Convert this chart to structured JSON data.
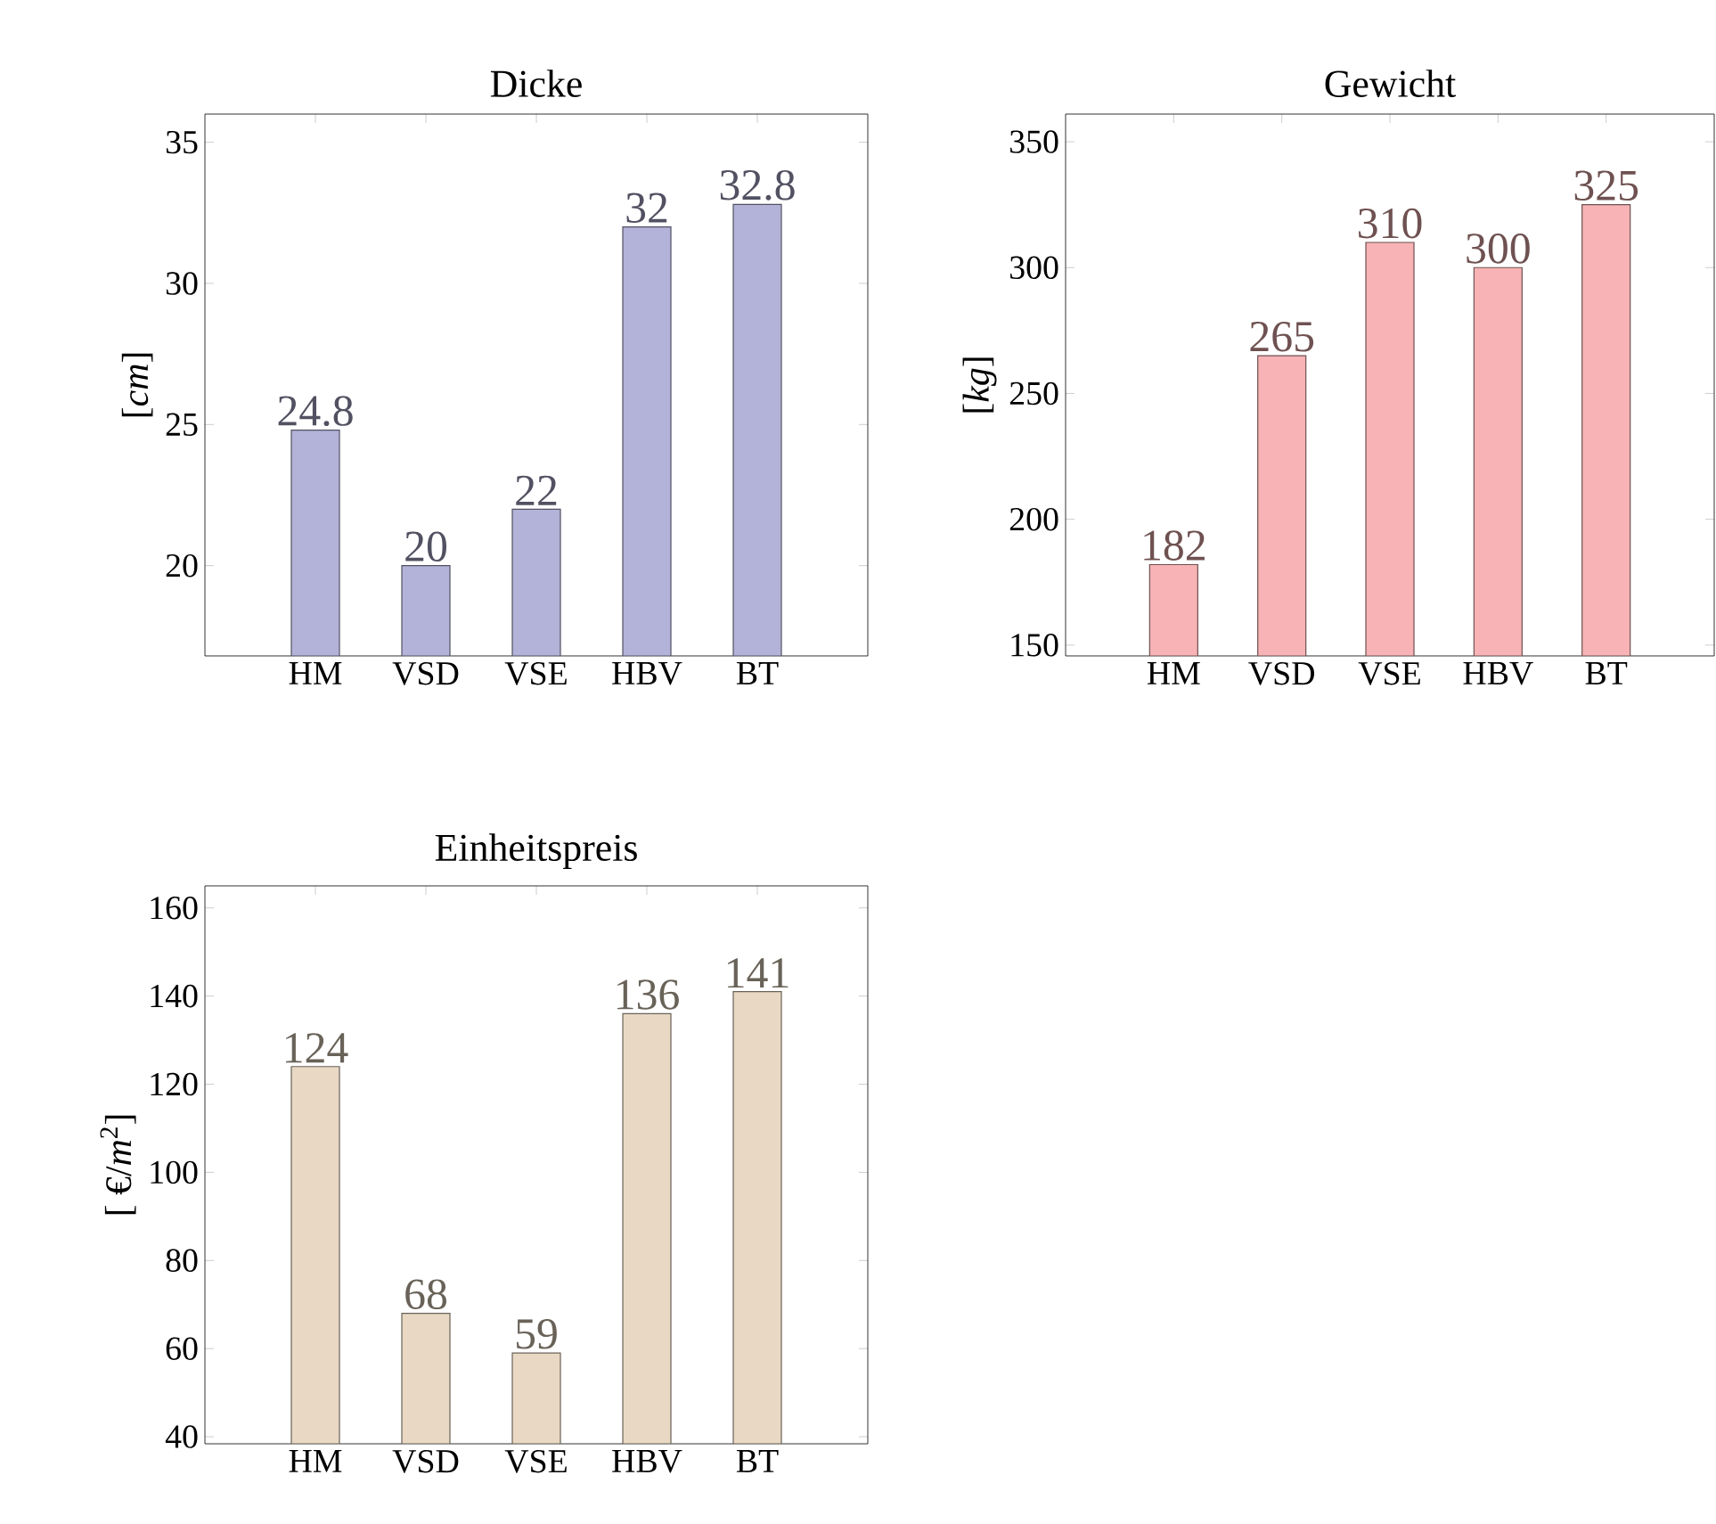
{
  "chart_data": [
    {
      "type": "bar",
      "title": "Dicke",
      "ylabel": "[*cm*]",
      "categories": [
        "HM",
        "VSD",
        "VSE",
        "HBV",
        "BT"
      ],
      "values": [
        24.8,
        20,
        22,
        32,
        32.8
      ],
      "color": "#b3b3d9",
      "ylim": [
        16.8,
        36
      ],
      "yticks": [
        20,
        25,
        30,
        35
      ],
      "data_labels": true
    },
    {
      "type": "bar",
      "title": "Gewicht",
      "ylabel": "[*kg*]",
      "categories": [
        "HM",
        "VSD",
        "VSE",
        "HBV",
        "BT"
      ],
      "values": [
        182,
        265,
        310,
        300,
        325
      ],
      "color": "#f7b3b5",
      "ylim": [
        145.7,
        361
      ],
      "yticks": [
        150,
        200,
        250,
        300,
        350
      ],
      "data_labels": true
    },
    {
      "type": "bar",
      "title": "Einheitspreis",
      "ylabel": "[ €/*m*$^{2}$]",
      "categories": [
        "HM",
        "VSD",
        "VSE",
        "HBV",
        "BT"
      ],
      "values": [
        124,
        68,
        59,
        136,
        141
      ],
      "color": "#e9d9c4",
      "ylim": [
        38.4,
        165
      ],
      "yticks": [
        40,
        60,
        80,
        100,
        120,
        140,
        160
      ],
      "data_labels": true
    }
  ]
}
